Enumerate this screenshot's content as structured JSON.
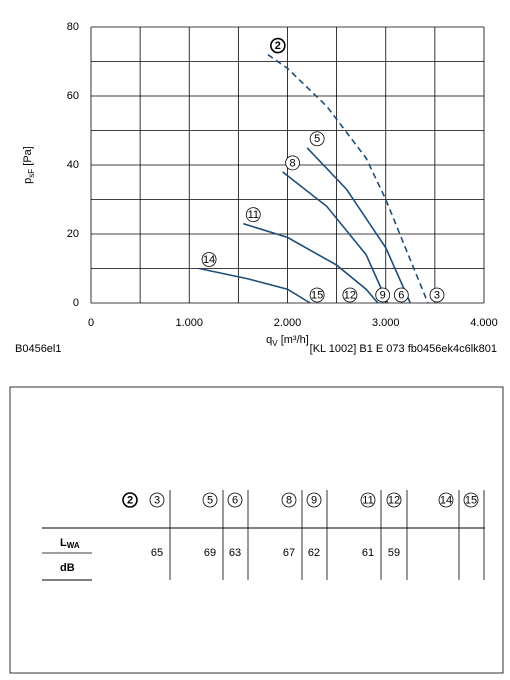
{
  "chart_data": {
    "type": "line",
    "code": "B0456el1",
    "reference": "[KL 1002] B1 E 073 fb0456ek4c6lk801",
    "y_label": {
      "symbol": "p",
      "sub": "sF",
      "unit": " [Pa]"
    },
    "x_label": {
      "symbol": "q",
      "sub": "V",
      "unit": " [m³/h]"
    },
    "xlim": [
      0,
      4000
    ],
    "ylim": [
      0,
      80
    ],
    "xticks": [
      0,
      {
        "value": 1000,
        "label": "1.000"
      },
      {
        "value": 2000,
        "label": "2.000"
      },
      {
        "value": 3000,
        "label": "3.000"
      },
      {
        "value": 4000,
        "label": "4.000"
      }
    ],
    "xminor": [
      500,
      1500,
      2500,
      3500
    ],
    "yticks": [
      0,
      20,
      40,
      60,
      80
    ],
    "yminor": [
      10,
      30,
      50,
      70
    ],
    "grid": true,
    "series": [
      {
        "name": "2",
        "end_label": "3",
        "color": "#1f4e79",
        "dashed": true,
        "bold": true,
        "x": [
          1800,
          2000,
          2400,
          2800,
          3000,
          3200,
          3430
        ],
        "values": [
          72,
          68,
          57,
          42,
          30,
          16,
          0
        ]
      },
      {
        "name": "5",
        "end_label": "6",
        "color": "#1f4e79",
        "x": [
          2200,
          2600,
          3000,
          3250
        ],
        "values": [
          45,
          33,
          16,
          0
        ]
      },
      {
        "name": "8",
        "end_label": "9",
        "color": "#1f4e79",
        "x": [
          1950,
          2400,
          2800,
          3020
        ],
        "values": [
          38,
          28,
          14,
          0
        ]
      },
      {
        "name": "11",
        "end_label": "12",
        "color": "#1f4e79",
        "x": [
          1550,
          2000,
          2500,
          2800,
          2920
        ],
        "values": [
          23,
          19,
          11,
          4,
          0
        ]
      },
      {
        "name": "14",
        "end_label": "15",
        "color": "#1f4e79",
        "x": [
          1100,
          1600,
          2000,
          2230
        ],
        "values": [
          10,
          7,
          4,
          0
        ]
      }
    ]
  },
  "table": {
    "row_labels": [
      {
        "main": "L",
        "sub": "WA"
      },
      "dB"
    ],
    "columns": [
      {
        "label": "2",
        "bold": true
      },
      {
        "label": "3",
        "lwa": 65
      },
      {
        "label": "5",
        "lwa": 69
      },
      {
        "label": "6",
        "lwa": 63
      },
      {
        "label": "8",
        "lwa": 67
      },
      {
        "label": "9",
        "lwa": 62
      },
      {
        "label": "11",
        "lwa": 61
      },
      {
        "label": "12",
        "lwa": 59
      },
      {
        "label": "14"
      },
      {
        "label": "15"
      }
    ]
  }
}
